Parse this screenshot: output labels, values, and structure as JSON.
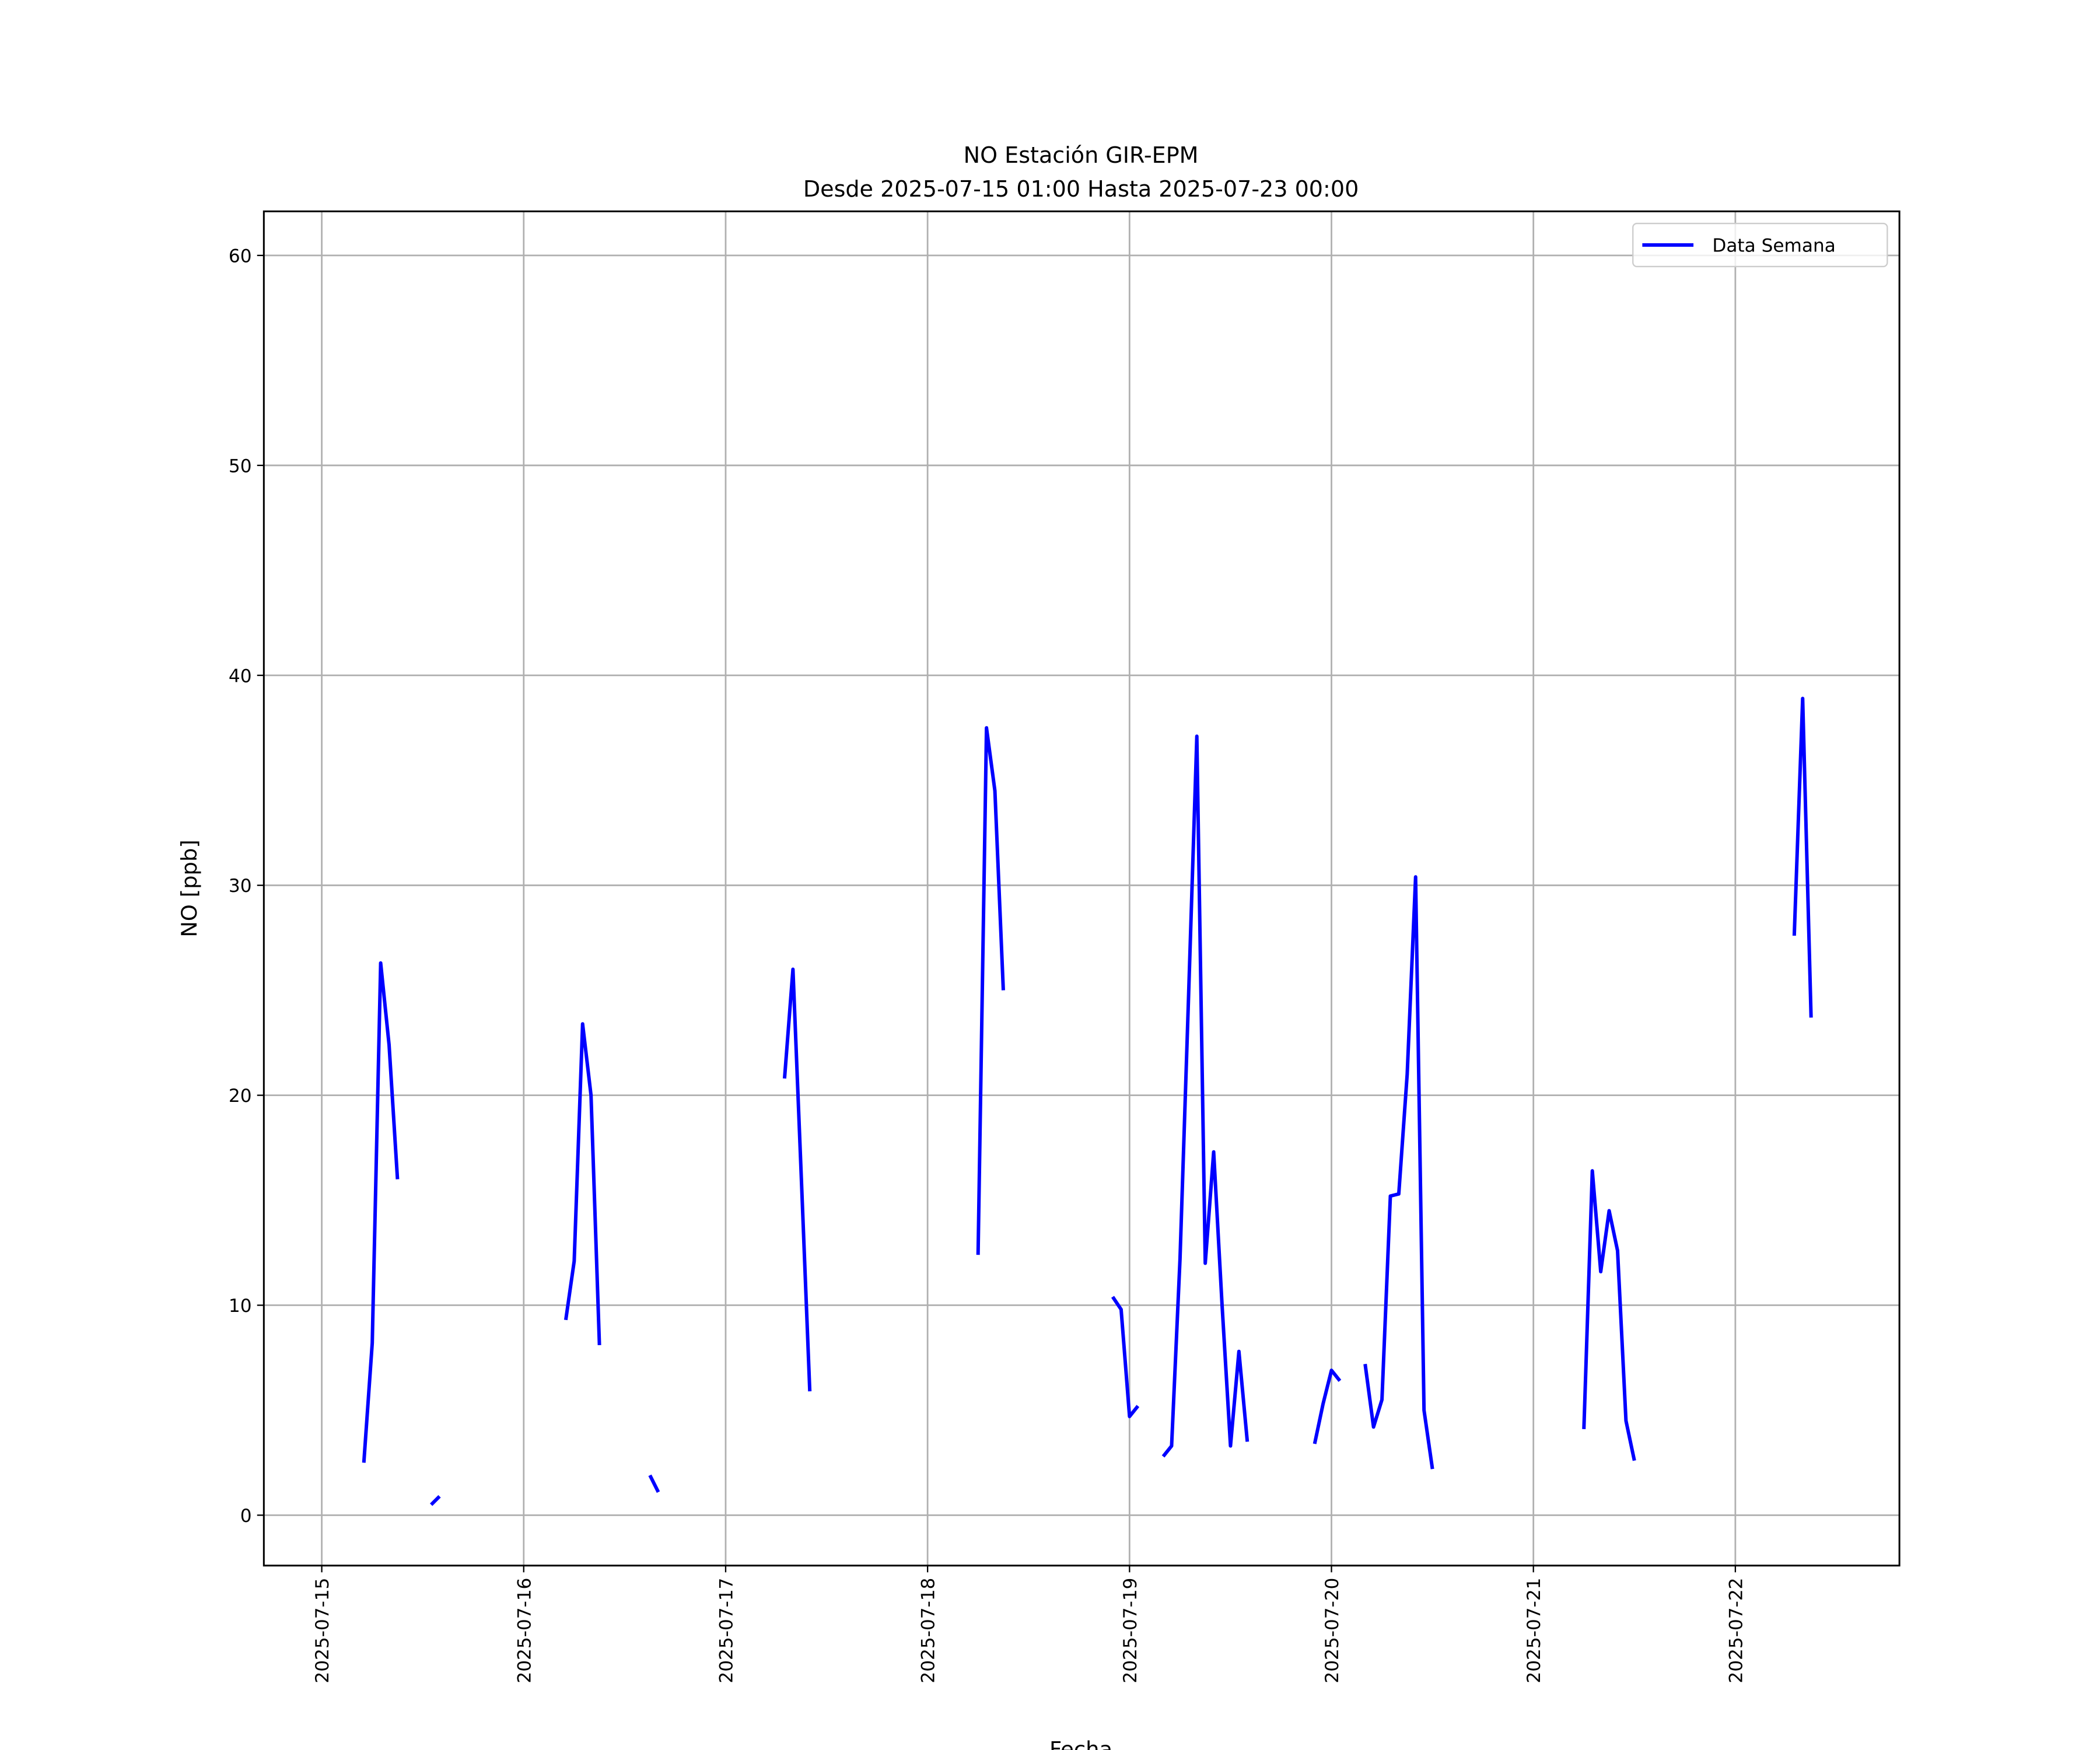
{
  "chart_data": {
    "type": "line",
    "title": "NO Estación GIR-EPM",
    "subtitle": "Desde 2025-07-15 01:00 Hasta 2025-07-23 00:00",
    "x_label": "Fecha",
    "y_label": "NO [ppb]",
    "x": [
      "2025-07-15 05:00",
      "2025-07-15 06:00",
      "2025-07-15 07:00",
      "2025-07-15 08:00",
      "2025-07-15 09:00",
      "2025-07-15 10:00",
      "2025-07-15 13:00",
      "2025-07-15 14:00",
      "2025-07-15 15:00",
      "2025-07-16 05:00",
      "2025-07-16 06:00",
      "2025-07-16 07:00",
      "2025-07-16 08:00",
      "2025-07-16 09:00",
      "2025-07-16 10:00",
      "2025-07-16 15:00",
      "2025-07-16 16:00",
      "2025-07-16 17:00",
      "2025-07-17 07:00",
      "2025-07-17 08:00",
      "2025-07-17 09:00",
      "2025-07-17 10:00",
      "2025-07-17 11:00",
      "2025-07-18 06:00",
      "2025-07-18 07:00",
      "2025-07-18 08:00",
      "2025-07-18 09:00",
      "2025-07-18 10:00",
      "2025-07-18 22:00",
      "2025-07-18 23:00",
      "2025-07-19 00:00",
      "2025-07-19 01:00",
      "2025-07-19 02:00",
      "2025-07-19 04:00",
      "2025-07-19 05:00",
      "2025-07-19 06:00",
      "2025-07-19 07:00",
      "2025-07-19 08:00",
      "2025-07-19 09:00",
      "2025-07-19 10:00",
      "2025-07-19 11:00",
      "2025-07-19 12:00",
      "2025-07-19 13:00",
      "2025-07-19 14:00",
      "2025-07-19 15:00",
      "2025-07-19 22:00",
      "2025-07-19 23:00",
      "2025-07-20 00:00",
      "2025-07-20 01:00",
      "2025-07-20 02:00",
      "2025-07-20 04:00",
      "2025-07-20 05:00",
      "2025-07-20 06:00",
      "2025-07-20 07:00",
      "2025-07-20 08:00",
      "2025-07-20 09:00",
      "2025-07-20 10:00",
      "2025-07-20 11:00",
      "2025-07-20 12:00",
      "2025-07-20 13:00",
      "2025-07-21 06:00",
      "2025-07-21 07:00",
      "2025-07-21 08:00",
      "2025-07-21 09:00",
      "2025-07-21 10:00",
      "2025-07-21 11:00",
      "2025-07-21 12:00",
      "2025-07-21 13:00",
      "2025-07-22 07:00",
      "2025-07-22 08:00",
      "2025-07-22 09:00"
    ],
    "series": [
      {
        "name": "Data Semana",
        "color": "#0000ff",
        "values": [
          2.5,
          8.2,
          26.3,
          22.4,
          16.0,
          null,
          0.5,
          0.9,
          null,
          9.3,
          12.1,
          23.4,
          20.0,
          8.1,
          null,
          1.9,
          1.1,
          null,
          20.8,
          26.0,
          16.0,
          5.9,
          null,
          12.4,
          37.5,
          34.5,
          25.0,
          null,
          10.4,
          9.8,
          4.7,
          5.2,
          null,
          2.8,
          3.3,
          12.2,
          24.5,
          37.1,
          12.0,
          17.3,
          10.0,
          3.3,
          7.8,
          3.5,
          null,
          3.4,
          5.3,
          6.9,
          6.4,
          null,
          7.2,
          4.2,
          5.5,
          15.2,
          15.3,
          21.0,
          30.4,
          5.0,
          2.2,
          null,
          4.1,
          16.4,
          11.6,
          14.5,
          12.6,
          4.5,
          2.6,
          null,
          27.6,
          38.9,
          23.7
        ]
      }
    ],
    "xlim": [
      "2025-07-14 17:07",
      "2025-07-22 19:30"
    ],
    "xticks": [
      "2025-07-15",
      "2025-07-16",
      "2025-07-17",
      "2025-07-18",
      "2025-07-19",
      "2025-07-20",
      "2025-07-21",
      "2025-07-22"
    ],
    "ylim": [
      -2.4,
      62.1
    ],
    "yticks": [
      0,
      10,
      20,
      30,
      40,
      50,
      60
    ],
    "grid": true,
    "legend": "upper right"
  }
}
